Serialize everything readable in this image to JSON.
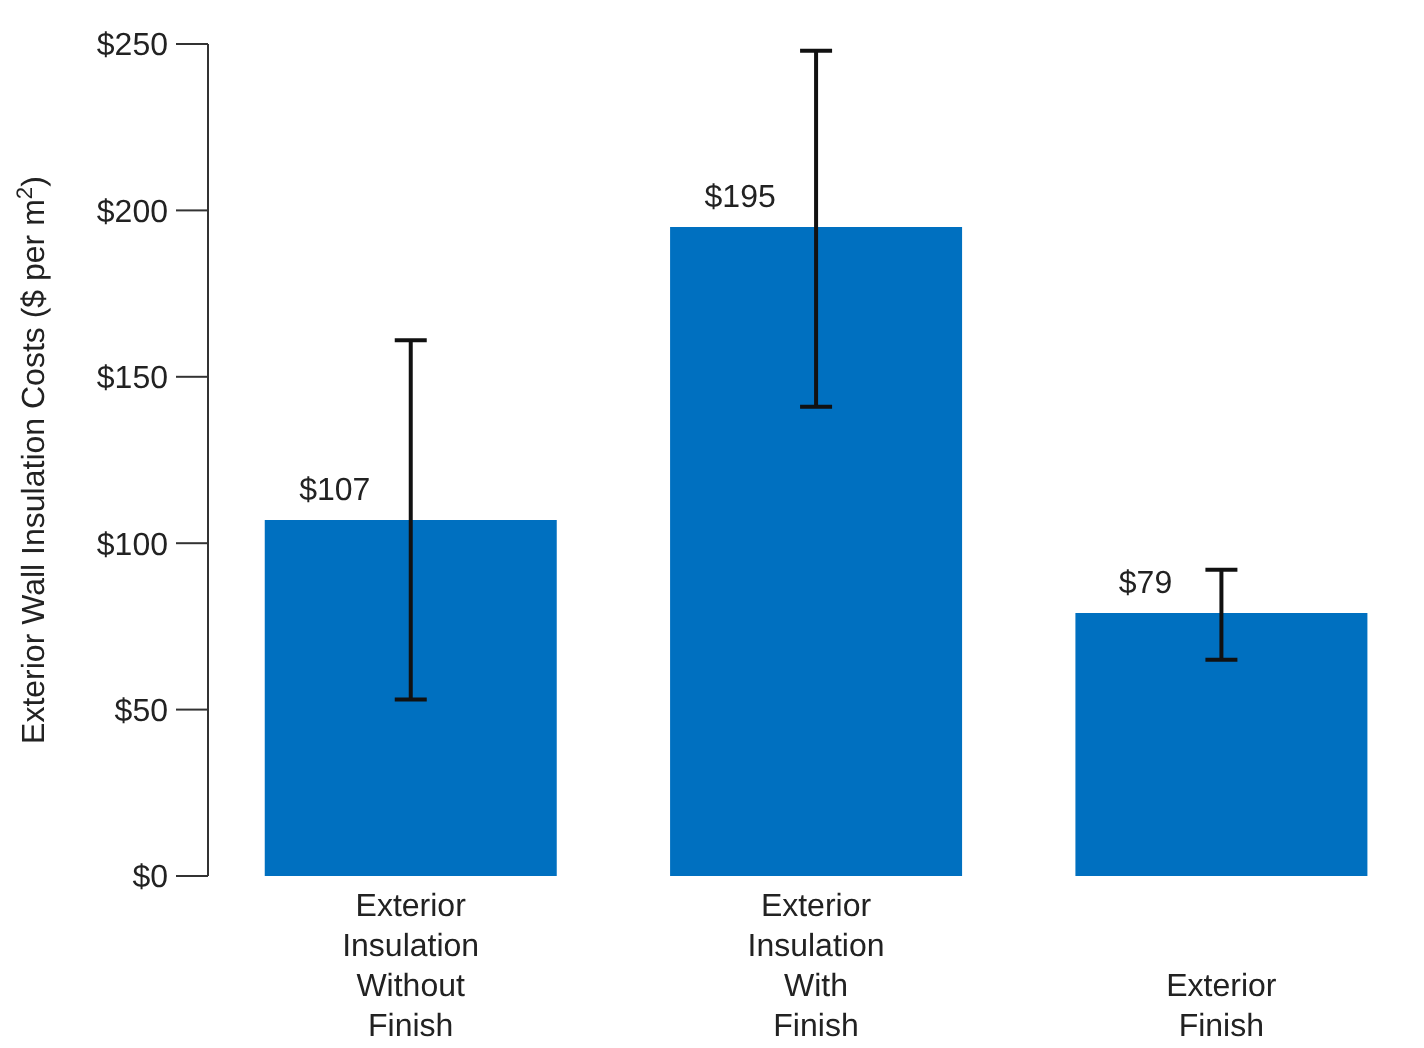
{
  "chart_data": {
    "type": "bar",
    "ylabel": "Exterior Wall Insulation Costs ($ per m$^{2}$)",
    "categories": [
      "Exterior\nInsulation\nWithout\nFinish",
      "Exterior\nInsulation\nWith\nFinish",
      "Exterior\nFinish"
    ],
    "values": [
      107,
      195,
      79
    ],
    "value_labels": [
      "$107",
      "$195",
      "$79"
    ],
    "errors": [
      [
        53,
        161
      ],
      [
        141,
        248
      ],
      [
        65,
        92
      ]
    ],
    "color": "#0070c0",
    "ylim": [
      0,
      250
    ],
    "yticks": [
      {
        "value": 0,
        "label": "$0"
      },
      {
        "value": 50,
        "label": "$50"
      },
      {
        "value": 100,
        "label": "$100"
      },
      {
        "value": 150,
        "label": "$150"
      },
      {
        "value": 200,
        "label": "$200"
      },
      {
        "value": 250,
        "label": "$250"
      }
    ],
    "grid": false,
    "legend": false
  }
}
